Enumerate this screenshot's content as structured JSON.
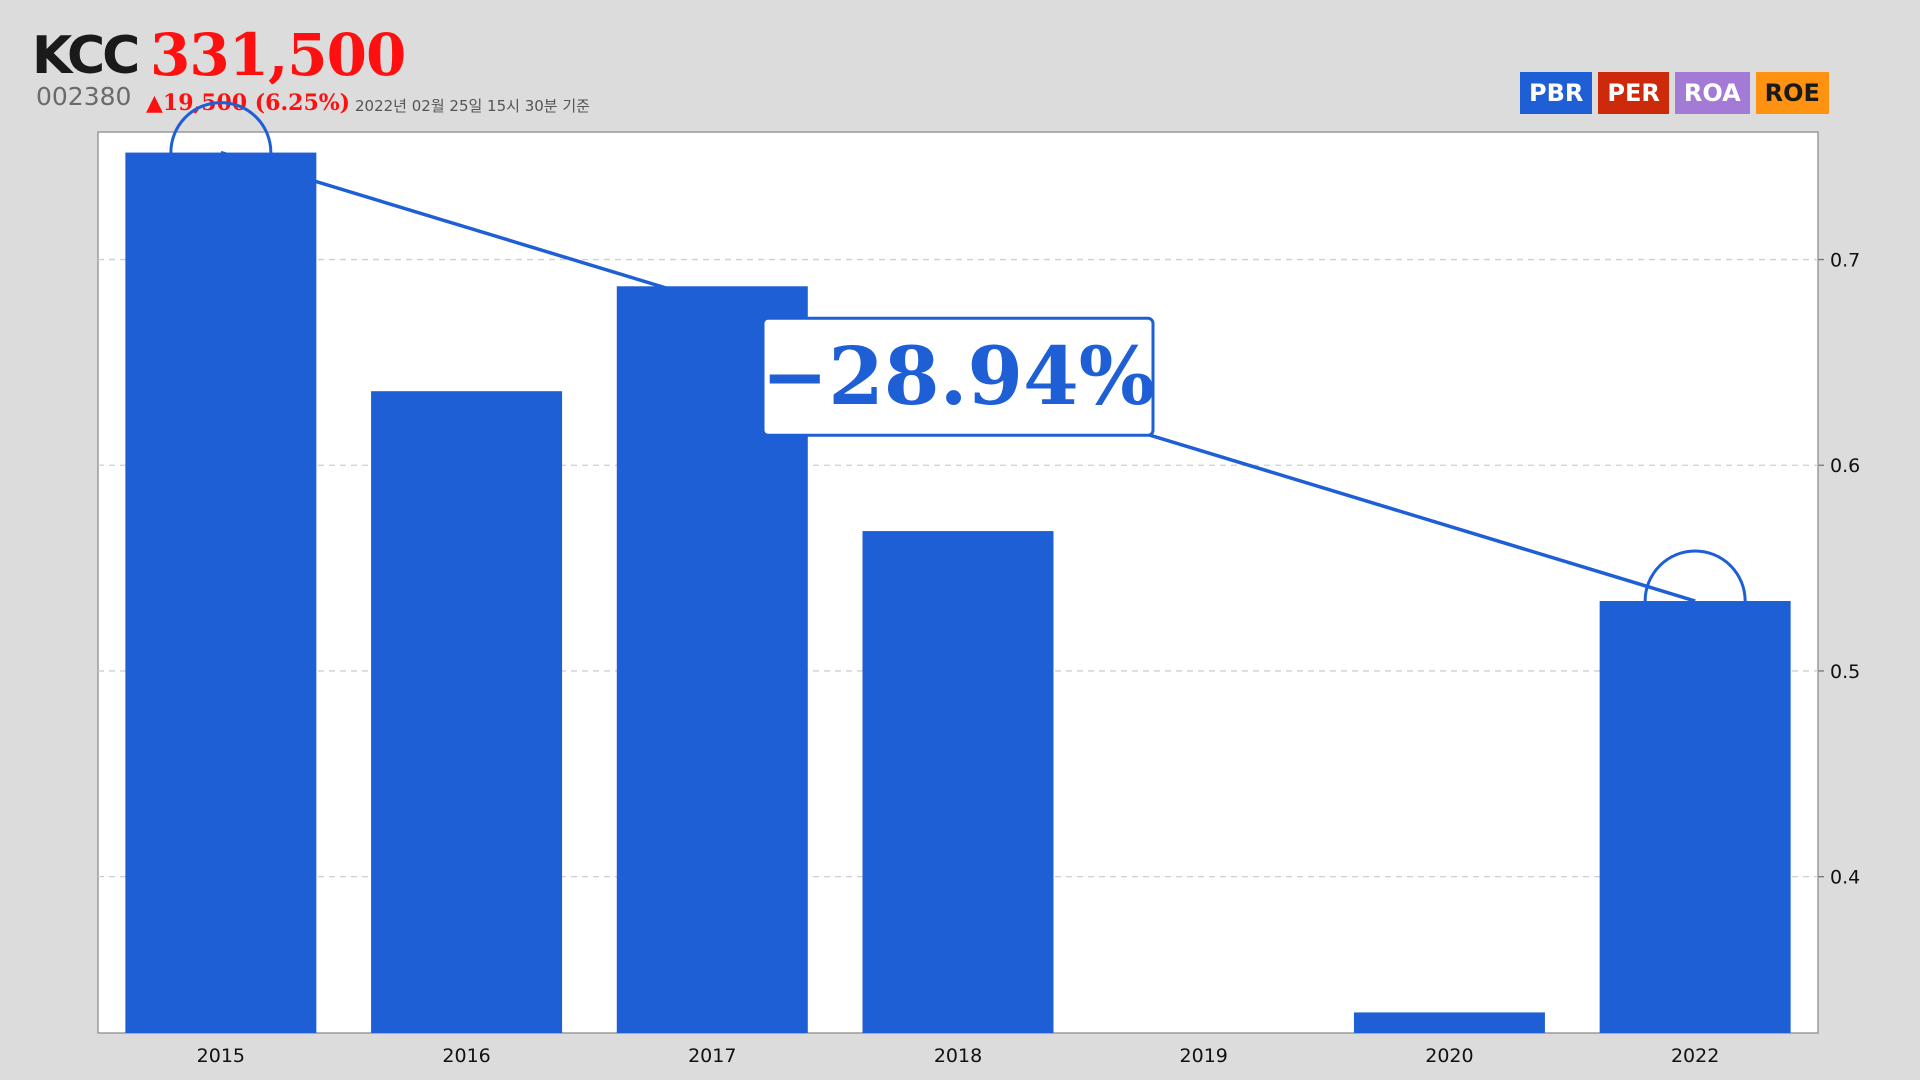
{
  "header": {
    "company": "KCC",
    "price": "331,500",
    "code": "002380",
    "change": "▲19,500 (6.25%)",
    "asof": "2022년 02월 25일 15시 30분 기준"
  },
  "colors": {
    "bar": "#1e5fd6",
    "up": "#ff1010",
    "background": "#dcdcdc",
    "plot": "#ffffff"
  },
  "badges": [
    {
      "label": "PBR",
      "color": "#1e5fd6"
    },
    {
      "label": "PER",
      "color": "#cc2a0a"
    },
    {
      "label": "ROA",
      "color": "#a37ad6"
    },
    {
      "label": "ROE",
      "color": "#ff9210"
    }
  ],
  "chart_data": {
    "type": "bar",
    "categories": [
      "2015",
      "2016",
      "2017",
      "2018",
      "2019",
      "2020",
      "2022"
    ],
    "values": [
      0.752,
      0.636,
      0.687,
      0.568,
      null,
      0.334,
      0.534
    ],
    "ylim": [
      0.324,
      0.762
    ],
    "yticks": [
      0.4,
      0.5,
      0.6,
      0.7
    ],
    "ytick_labels": [
      "0.4",
      "0.5",
      "0.6",
      "0.7"
    ],
    "y_axis_position": "right",
    "grid": "horizontal dashed",
    "trend": {
      "from": "2015",
      "to": "2022",
      "change_label": "−28.94%"
    }
  }
}
